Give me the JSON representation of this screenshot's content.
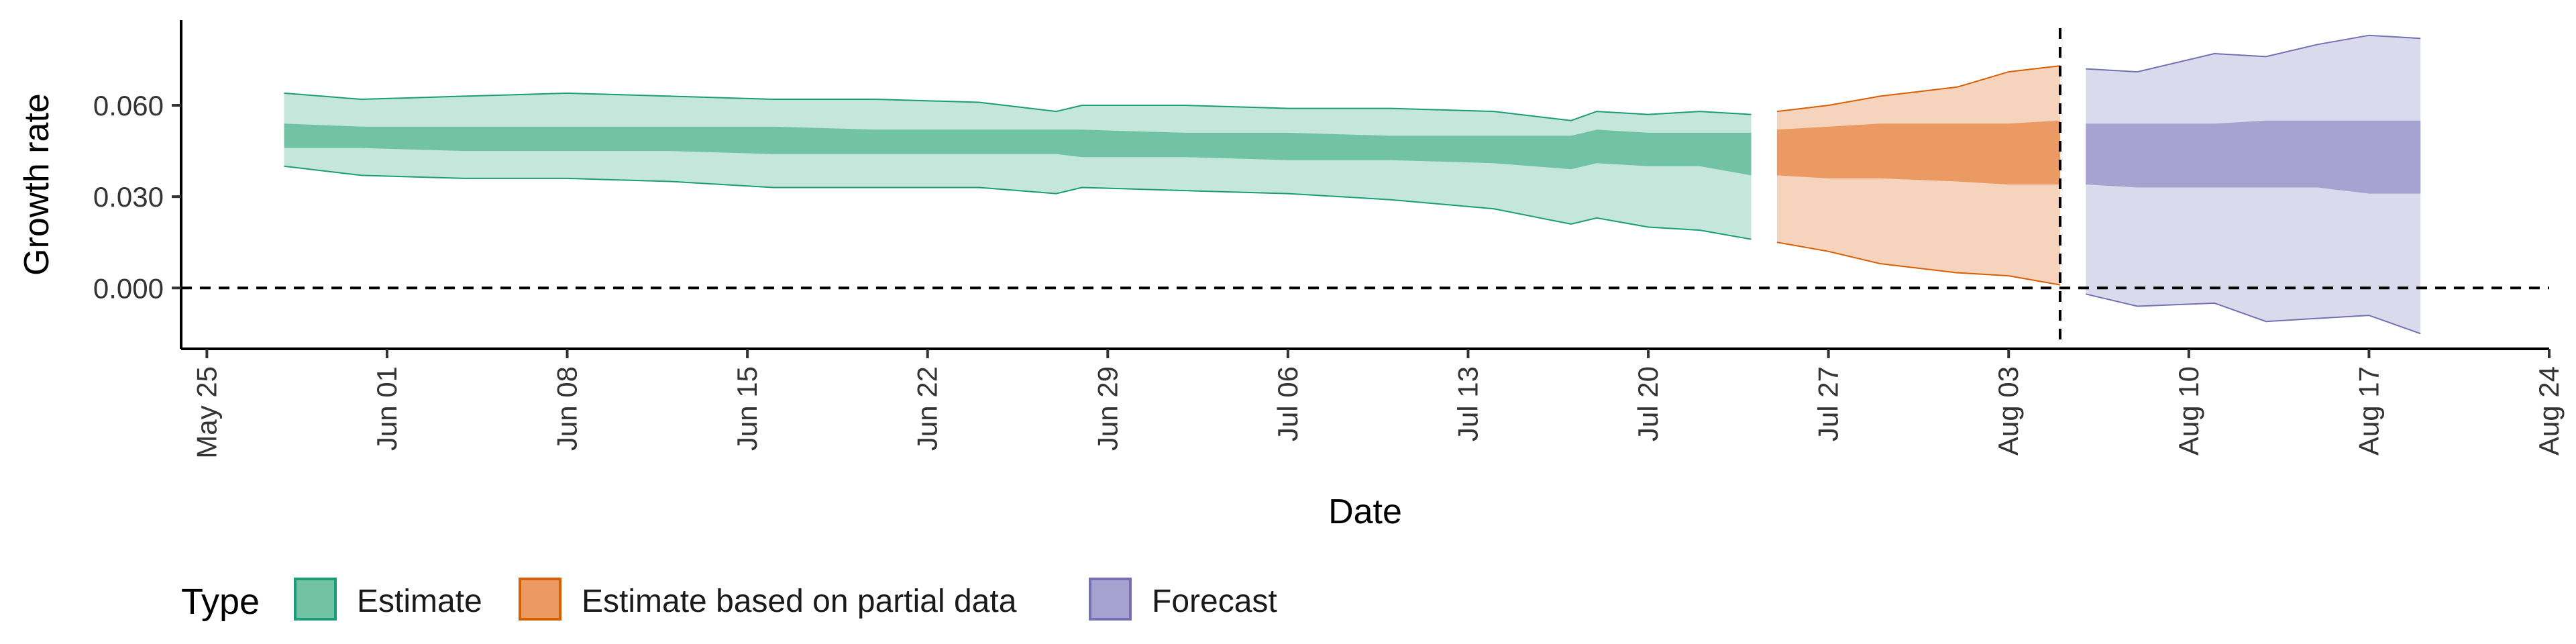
{
  "chart_data": {
    "type": "area",
    "xlabel": "Date",
    "ylabel": "Growth rate",
    "x_axis": {
      "type": "date",
      "range": [
        "2020-05-24",
        "2020-08-24"
      ],
      "ticks": [
        {
          "date": "2020-05-25",
          "label": "May 25"
        },
        {
          "date": "2020-06-01",
          "label": "Jun 01"
        },
        {
          "date": "2020-06-08",
          "label": "Jun 08"
        },
        {
          "date": "2020-06-15",
          "label": "Jun 15"
        },
        {
          "date": "2020-06-22",
          "label": "Jun 22"
        },
        {
          "date": "2020-06-29",
          "label": "Jun 29"
        },
        {
          "date": "2020-07-06",
          "label": "Jul 06"
        },
        {
          "date": "2020-07-13",
          "label": "Jul 13"
        },
        {
          "date": "2020-07-20",
          "label": "Jul 20"
        },
        {
          "date": "2020-07-27",
          "label": "Jul 27"
        },
        {
          "date": "2020-08-03",
          "label": "Aug 03"
        },
        {
          "date": "2020-08-10",
          "label": "Aug 10"
        },
        {
          "date": "2020-08-17",
          "label": "Aug 17"
        },
        {
          "date": "2020-08-24",
          "label": "Aug 24"
        }
      ]
    },
    "y_axis": {
      "range": [
        -0.02,
        0.088
      ],
      "ticks": [
        {
          "value": 0.0,
          "label": "0.000"
        },
        {
          "value": 0.03,
          "label": "0.030"
        },
        {
          "value": 0.06,
          "label": "0.060"
        }
      ]
    },
    "reference_lines": {
      "horizontal_dashed_y": 0.0,
      "vertical_dashed_date": "2020-08-05"
    },
    "grid": false,
    "legend": {
      "title": "Type",
      "position": "bottom",
      "items": [
        {
          "label": "Estimate",
          "fill": "#72C2A6",
          "stroke": "#1B9E77"
        },
        {
          "label": "Estimate based on partial data",
          "fill": "#EA9A62",
          "stroke": "#D95F02"
        },
        {
          "label": "Forecast",
          "fill": "#A6A3D0",
          "stroke": "#7570B3"
        }
      ]
    },
    "series": [
      {
        "name": "Estimate",
        "outer_fill": "#C5E6DB",
        "inner_fill": "#72C2A6",
        "stroke": "#1B9E77",
        "points": [
          {
            "x": "2020-05-28",
            "lo90": 0.04,
            "lo50": 0.046,
            "hi50": 0.054,
            "hi90": 0.064
          },
          {
            "x": "2020-05-31",
            "lo90": 0.037,
            "lo50": 0.046,
            "hi50": 0.053,
            "hi90": 0.062
          },
          {
            "x": "2020-06-04",
            "lo90": 0.036,
            "lo50": 0.045,
            "hi50": 0.053,
            "hi90": 0.063
          },
          {
            "x": "2020-06-08",
            "lo90": 0.036,
            "lo50": 0.045,
            "hi50": 0.053,
            "hi90": 0.064
          },
          {
            "x": "2020-06-12",
            "lo90": 0.035,
            "lo50": 0.045,
            "hi50": 0.053,
            "hi90": 0.063
          },
          {
            "x": "2020-06-16",
            "lo90": 0.033,
            "lo50": 0.044,
            "hi50": 0.053,
            "hi90": 0.062
          },
          {
            "x": "2020-06-20",
            "lo90": 0.033,
            "lo50": 0.044,
            "hi50": 0.052,
            "hi90": 0.062
          },
          {
            "x": "2020-06-24",
            "lo90": 0.033,
            "lo50": 0.044,
            "hi50": 0.052,
            "hi90": 0.061
          },
          {
            "x": "2020-06-27",
            "lo90": 0.031,
            "lo50": 0.044,
            "hi50": 0.052,
            "hi90": 0.058
          },
          {
            "x": "2020-06-28",
            "lo90": 0.033,
            "lo50": 0.043,
            "hi50": 0.052,
            "hi90": 0.06
          },
          {
            "x": "2020-07-02",
            "lo90": 0.032,
            "lo50": 0.043,
            "hi50": 0.051,
            "hi90": 0.06
          },
          {
            "x": "2020-07-06",
            "lo90": 0.031,
            "lo50": 0.042,
            "hi50": 0.051,
            "hi90": 0.059
          },
          {
            "x": "2020-07-10",
            "lo90": 0.029,
            "lo50": 0.042,
            "hi50": 0.05,
            "hi90": 0.059
          },
          {
            "x": "2020-07-14",
            "lo90": 0.026,
            "lo50": 0.041,
            "hi50": 0.05,
            "hi90": 0.058
          },
          {
            "x": "2020-07-17",
            "lo90": 0.021,
            "lo50": 0.039,
            "hi50": 0.05,
            "hi90": 0.055
          },
          {
            "x": "2020-07-18",
            "lo90": 0.023,
            "lo50": 0.041,
            "hi50": 0.052,
            "hi90": 0.058
          },
          {
            "x": "2020-07-20",
            "lo90": 0.02,
            "lo50": 0.04,
            "hi50": 0.051,
            "hi90": 0.057
          },
          {
            "x": "2020-07-22",
            "lo90": 0.019,
            "lo50": 0.04,
            "hi50": 0.051,
            "hi90": 0.058
          },
          {
            "x": "2020-07-24",
            "lo90": 0.016,
            "lo50": 0.037,
            "hi50": 0.051,
            "hi90": 0.057
          }
        ]
      },
      {
        "name": "Estimate based on partial data",
        "outer_fill": "#F5D3BC",
        "inner_fill": "#EA9A62",
        "stroke": "#D95F02",
        "points": [
          {
            "x": "2020-07-25",
            "lo90": 0.015,
            "lo50": 0.037,
            "hi50": 0.052,
            "hi90": 0.058
          },
          {
            "x": "2020-07-27",
            "lo90": 0.012,
            "lo50": 0.036,
            "hi50": 0.053,
            "hi90": 0.06
          },
          {
            "x": "2020-07-29",
            "lo90": 0.008,
            "lo50": 0.036,
            "hi50": 0.054,
            "hi90": 0.063
          },
          {
            "x": "2020-08-01",
            "lo90": 0.005,
            "lo50": 0.035,
            "hi50": 0.054,
            "hi90": 0.066
          },
          {
            "x": "2020-08-03",
            "lo90": 0.004,
            "lo50": 0.034,
            "hi50": 0.054,
            "hi90": 0.071
          },
          {
            "x": "2020-08-05",
            "lo90": 0.001,
            "lo50": 0.034,
            "hi50": 0.055,
            "hi90": 0.073
          }
        ]
      },
      {
        "name": "Forecast",
        "outer_fill": "#DBDAEC",
        "inner_fill": "#A6A3D0",
        "stroke": "#7570B3",
        "points": [
          {
            "x": "2020-08-06",
            "lo90": -0.002,
            "lo50": 0.034,
            "hi50": 0.054,
            "hi90": 0.072
          },
          {
            "x": "2020-08-08",
            "lo90": -0.006,
            "lo50": 0.033,
            "hi50": 0.054,
            "hi90": 0.071
          },
          {
            "x": "2020-08-11",
            "lo90": -0.005,
            "lo50": 0.033,
            "hi50": 0.054,
            "hi90": 0.077
          },
          {
            "x": "2020-08-13",
            "lo90": -0.011,
            "lo50": 0.033,
            "hi50": 0.055,
            "hi90": 0.076
          },
          {
            "x": "2020-08-15",
            "lo90": -0.01,
            "lo50": 0.033,
            "hi50": 0.055,
            "hi90": 0.08
          },
          {
            "x": "2020-08-17",
            "lo90": -0.009,
            "lo50": 0.031,
            "hi50": 0.055,
            "hi90": 0.083
          },
          {
            "x": "2020-08-19",
            "lo90": -0.015,
            "lo50": 0.031,
            "hi50": 0.055,
            "hi90": 0.082
          }
        ]
      }
    ]
  }
}
